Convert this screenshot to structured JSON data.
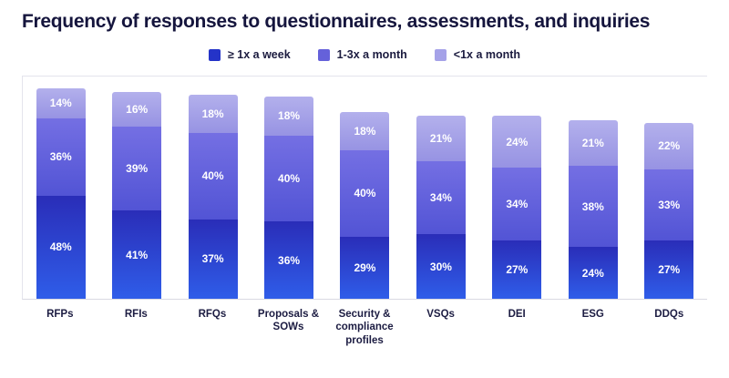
{
  "title": "Frequency of responses to questionnaires, assessments, and inquiries",
  "colors": {
    "series": [
      "#2433c8",
      "#6561da",
      "#a5a2e8"
    ],
    "segment_gradients": [
      [
        "#2a2db8",
        "#2f5de9"
      ],
      [
        "#746fe3",
        "#5254d5"
      ],
      [
        "#b3b0ec",
        "#9793e3"
      ]
    ],
    "title_text": "#15153d",
    "category_text": "#1c1c42",
    "axis_line": "#e4e4ec"
  },
  "chart_data": {
    "type": "bar",
    "stacked": true,
    "title": "Frequency of responses to questionnaires, assessments, and inquiries",
    "categories": [
      "RFPs",
      "RFIs",
      "RFQs",
      "Proposals & SOWs",
      "Security & compliance profiles",
      "VSQs",
      "DEI",
      "ESG",
      "DDQs"
    ],
    "series": [
      {
        "name": "≥ 1x a week",
        "values": [
          48,
          41,
          37,
          36,
          29,
          30,
          27,
          24,
          27
        ]
      },
      {
        "name": "1-3x a month",
        "values": [
          36,
          39,
          40,
          40,
          40,
          34,
          34,
          38,
          33
        ]
      },
      {
        "name": "<1x a month",
        "values": [
          14,
          16,
          18,
          18,
          18,
          21,
          24,
          21,
          22
        ]
      }
    ],
    "value_suffix": "%",
    "xlabel": "",
    "ylabel": "",
    "ylim": [
      0,
      100
    ],
    "grid": false,
    "legend_position": "top"
  }
}
